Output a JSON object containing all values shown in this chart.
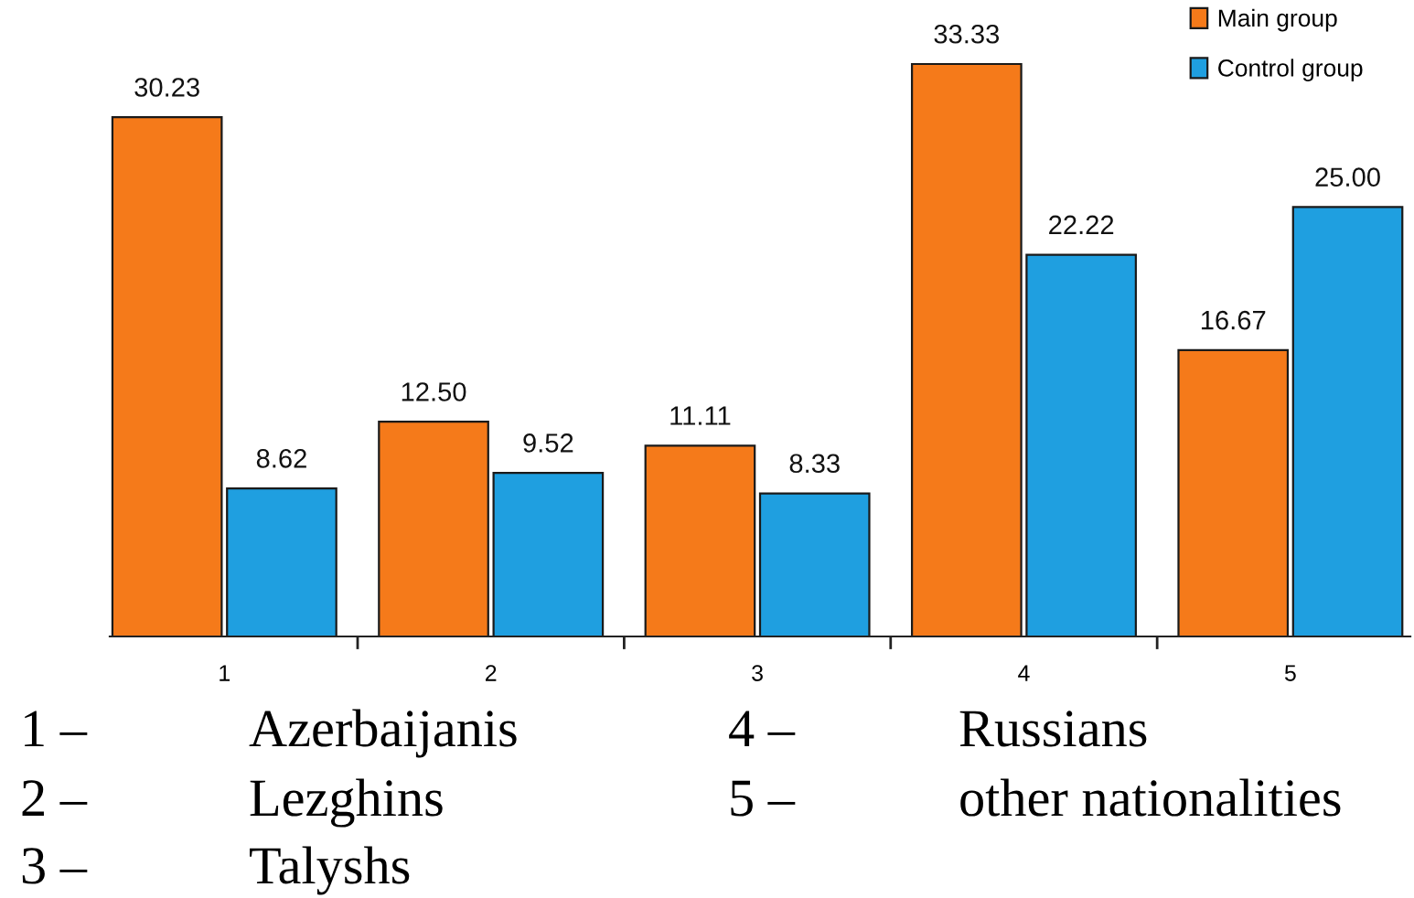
{
  "chart_data": {
    "type": "bar",
    "categories": [
      "1",
      "2",
      "3",
      "4",
      "5"
    ],
    "series": [
      {
        "name": "Main group",
        "color": "#f57a1a",
        "values": [
          30.23,
          12.5,
          11.11,
          33.33,
          16.67
        ],
        "value_labels": [
          "30.23",
          "12.50",
          "11.11",
          "33.33",
          "16.67"
        ]
      },
      {
        "name": "Control group",
        "color": "#1f9fe0",
        "values": [
          8.62,
          9.52,
          8.33,
          22.22,
          25.0
        ],
        "value_labels": [
          "8.62",
          "9.52",
          "8.33",
          "22.22",
          "25.00"
        ]
      }
    ],
    "tick_labels": "x",
    "legend": "top right",
    "annotations": [
      "1 –",
      "Azerbaijanis",
      "4 –",
      "Russians",
      "2 –",
      "Lezghins",
      "5 –",
      "other nationalities",
      "3 –",
      "Talyshs"
    ]
  }
}
